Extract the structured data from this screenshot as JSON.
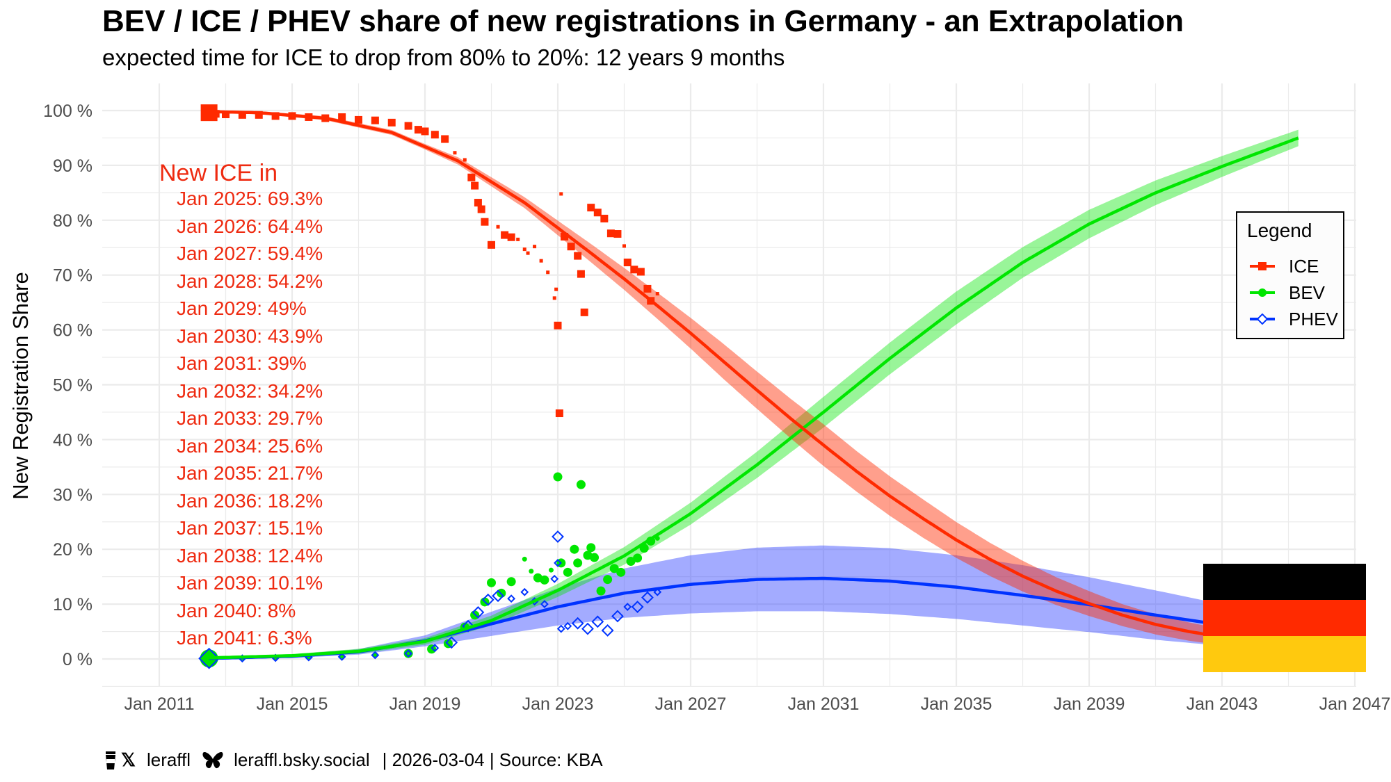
{
  "header": {
    "title": "BEV / ICE / PHEV share of new registrations in Germany - an Extrapolation",
    "subtitle": "expected time for ICE to drop from 80% to 20%: 12 years 9 months"
  },
  "annotation": {
    "heading": "New ICE in",
    "items": [
      "Jan 2025: 69.3%",
      "Jan 2026: 64.4%",
      "Jan 2027: 59.4%",
      "Jan 2028: 54.2%",
      "Jan 2029: 49%",
      "Jan 2030: 43.9%",
      "Jan 2031: 39%",
      "Jan 2032: 34.2%",
      "Jan 2033: 29.7%",
      "Jan 2034: 25.6%",
      "Jan 2035: 21.7%",
      "Jan 2036: 18.2%",
      "Jan 2037: 15.1%",
      "Jan 2038: 12.4%",
      "Jan 2039: 10.1%",
      "Jan 2040: 8%",
      "Jan 2041: 6.3%"
    ]
  },
  "legend": {
    "title": "Legend",
    "entries": [
      {
        "label": "ICE",
        "color": "#ff2a00",
        "marker": "square"
      },
      {
        "label": "BEV",
        "color": "#00e600",
        "marker": "circle"
      },
      {
        "label": "PHEV",
        "color": "#0033ff",
        "marker": "diamond-open"
      }
    ]
  },
  "flag": {
    "country": "Germany",
    "colors": [
      "#000000",
      "#ff2a00",
      "#ffc90e"
    ]
  },
  "footer": {
    "icons": [
      "coffee-cup-icon",
      "x-logo-icon",
      "butterfly-icon"
    ],
    "handle_x": "leraffl",
    "handle_bsky": "leraffl.bsky.social",
    "date_source": "| 2026-03-04 | Source: KBA"
  },
  "chart_data": {
    "type": "scatter",
    "title": "BEV / ICE / PHEV share of new registrations in Germany - an Extrapolation",
    "subtitle": "expected time for ICE to drop from 80% to 20%: 12 years 9 months",
    "xlabel": "",
    "ylabel": "New Registration Share",
    "x_ticks": [
      "Jan 2011",
      "Jan 2015",
      "Jan 2019",
      "Jan 2023",
      "Jan 2027",
      "Jan 2031",
      "Jan 2035",
      "Jan 2039",
      "Jan 2043",
      "Jan 2047"
    ],
    "x_tick_years": [
      2011,
      2015,
      2019,
      2023,
      2027,
      2031,
      2035,
      2039,
      2043,
      2047
    ],
    "y_ticks": [
      "0 %",
      "10 %",
      "20 %",
      "30 %",
      "40 %",
      "50 %",
      "60 %",
      "70 %",
      "80 %",
      "90 %",
      "100 %"
    ],
    "y_tick_values": [
      0,
      10,
      20,
      30,
      40,
      50,
      60,
      70,
      80,
      90,
      100
    ],
    "xlim": [
      2010.3,
      2047.1
    ],
    "ylim": [
      -5,
      105
    ],
    "grid": true,
    "legend_position": "right",
    "series": [
      {
        "name": "ICE",
        "color": "#ff2a00",
        "band_color": "#ff2a00",
        "points": [
          [
            2012.5,
            99.6,
            3
          ],
          [
            2012.7,
            99.4,
            2
          ],
          [
            2013.0,
            99.3,
            2
          ],
          [
            2013.5,
            99.2,
            2
          ],
          [
            2014.0,
            99.2,
            2
          ],
          [
            2014.5,
            99.0,
            2
          ],
          [
            2015.0,
            99.0,
            2
          ],
          [
            2015.5,
            98.8,
            2
          ],
          [
            2016.0,
            98.6,
            2
          ],
          [
            2016.5,
            98.8,
            2
          ],
          [
            2017.0,
            98.3,
            2
          ],
          [
            2017.5,
            98.2,
            2
          ],
          [
            2018.0,
            97.8,
            2
          ],
          [
            2018.5,
            97.2,
            2
          ],
          [
            2018.8,
            96.5,
            2
          ],
          [
            2019.0,
            96.2,
            2
          ],
          [
            2019.3,
            95.6,
            2
          ],
          [
            2019.6,
            94.8,
            2
          ],
          [
            2019.9,
            92.3,
            1
          ],
          [
            2020.2,
            91.0,
            1
          ],
          [
            2020.4,
            87.8,
            2
          ],
          [
            2020.5,
            86.3,
            2
          ],
          [
            2020.6,
            83.2,
            2
          ],
          [
            2020.7,
            82.0,
            2
          ],
          [
            2020.8,
            79.7,
            2
          ],
          [
            2021.0,
            75.5,
            2
          ],
          [
            2021.2,
            78.8,
            1
          ],
          [
            2021.4,
            77.3,
            2
          ],
          [
            2021.6,
            76.9,
            2
          ],
          [
            2021.8,
            76.5,
            1
          ],
          [
            2022.0,
            74.7,
            1
          ],
          [
            2022.1,
            74.0,
            1
          ],
          [
            2022.3,
            75.2,
            1
          ],
          [
            2022.5,
            72.6,
            1
          ],
          [
            2022.7,
            70.5,
            1
          ],
          [
            2022.9,
            65.8,
            1
          ],
          [
            2022.95,
            67.4,
            1
          ],
          [
            2023.0,
            60.8,
            2
          ],
          [
            2023.05,
            44.8,
            2
          ],
          [
            2023.1,
            84.8,
            1
          ],
          [
            2023.2,
            77.0,
            2
          ],
          [
            2023.4,
            75.2,
            2
          ],
          [
            2023.6,
            73.5,
            2
          ],
          [
            2023.7,
            70.2,
            2
          ],
          [
            2023.8,
            63.2,
            2
          ],
          [
            2024.0,
            82.3,
            2
          ],
          [
            2024.2,
            81.4,
            2
          ],
          [
            2024.4,
            80.3,
            2
          ],
          [
            2024.6,
            77.6,
            2
          ],
          [
            2024.8,
            77.5,
            2
          ],
          [
            2025.0,
            75.3,
            1
          ],
          [
            2025.1,
            72.3,
            2
          ],
          [
            2025.3,
            71.0,
            2
          ],
          [
            2025.5,
            70.6,
            2
          ],
          [
            2025.7,
            67.5,
            2
          ],
          [
            2025.8,
            65.3,
            2
          ],
          [
            2026.0,
            66.6,
            1
          ]
        ],
        "fit": [
          [
            2012.5,
            99.8
          ],
          [
            2014,
            99.6
          ],
          [
            2016,
            98.6
          ],
          [
            2018,
            96.0
          ],
          [
            2020,
            90.8
          ],
          [
            2022,
            83.2
          ],
          [
            2024,
            74.0
          ],
          [
            2025,
            69.3
          ],
          [
            2026,
            64.4
          ],
          [
            2027,
            59.4
          ],
          [
            2028,
            54.2
          ],
          [
            2029,
            49.0
          ],
          [
            2030,
            43.9
          ],
          [
            2031,
            39.0
          ],
          [
            2032,
            34.2
          ],
          [
            2033,
            29.7
          ],
          [
            2034,
            25.6
          ],
          [
            2035,
            21.7
          ],
          [
            2036,
            18.2
          ],
          [
            2037,
            15.1
          ],
          [
            2038,
            12.4
          ],
          [
            2039,
            10.1
          ],
          [
            2040,
            8.0
          ],
          [
            2041,
            6.3
          ],
          [
            2042,
            5.0
          ],
          [
            2043,
            4.0
          ]
        ],
        "band_halfwidth": [
          [
            2012.5,
            0.2
          ],
          [
            2019,
            0.5
          ],
          [
            2022,
            1.0
          ],
          [
            2025,
            2.0
          ],
          [
            2028,
            3.2
          ],
          [
            2031,
            3.8
          ],
          [
            2034,
            3.5
          ],
          [
            2037,
            2.8
          ],
          [
            2040,
            2.0
          ],
          [
            2043,
            1.5
          ]
        ]
      },
      {
        "name": "BEV",
        "color": "#00e600",
        "band_color": "#00e600",
        "points": [
          [
            2012.5,
            0.1,
            3
          ],
          [
            2013.5,
            0.2,
            1
          ],
          [
            2014.5,
            0.3,
            1
          ],
          [
            2015.5,
            0.4,
            1
          ],
          [
            2016.5,
            0.5,
            1
          ],
          [
            2017.5,
            0.8,
            1
          ],
          [
            2018.5,
            1.0,
            2
          ],
          [
            2019.2,
            1.8,
            2
          ],
          [
            2019.7,
            2.8,
            2
          ],
          [
            2020.2,
            5.8,
            2
          ],
          [
            2020.5,
            8.0,
            2
          ],
          [
            2020.8,
            10.4,
            2
          ],
          [
            2021.0,
            13.9,
            2
          ],
          [
            2021.3,
            12.0,
            2
          ],
          [
            2021.6,
            14.1,
            2
          ],
          [
            2022.0,
            18.2,
            1
          ],
          [
            2022.2,
            16.0,
            1
          ],
          [
            2022.4,
            14.8,
            2
          ],
          [
            2022.6,
            14.4,
            2
          ],
          [
            2022.8,
            16.2,
            1
          ],
          [
            2023.0,
            33.2,
            2
          ],
          [
            2023.1,
            17.5,
            2
          ],
          [
            2023.3,
            15.8,
            2
          ],
          [
            2023.5,
            20.0,
            2
          ],
          [
            2023.6,
            17.5,
            2
          ],
          [
            2023.7,
            31.8,
            2
          ],
          [
            2023.9,
            18.9,
            2
          ],
          [
            2024.0,
            20.3,
            2
          ],
          [
            2024.1,
            18.5,
            2
          ],
          [
            2024.3,
            12.4,
            2
          ],
          [
            2024.5,
            14.5,
            2
          ],
          [
            2024.7,
            16.5,
            2
          ],
          [
            2024.9,
            15.8,
            2
          ],
          [
            2025.2,
            17.8,
            2
          ],
          [
            2025.4,
            18.4,
            2
          ],
          [
            2025.6,
            20.2,
            2
          ],
          [
            2025.8,
            21.5,
            2
          ],
          [
            2026.0,
            22.0,
            1
          ]
        ],
        "fit": [
          [
            2012.5,
            0.2
          ],
          [
            2015,
            0.6
          ],
          [
            2017,
            1.4
          ],
          [
            2019,
            3.2
          ],
          [
            2021,
            7.0
          ],
          [
            2023,
            12.5
          ],
          [
            2025,
            18.8
          ],
          [
            2027,
            26.5
          ],
          [
            2029,
            35.4
          ],
          [
            2031,
            45.0
          ],
          [
            2033,
            54.8
          ],
          [
            2035,
            64.0
          ],
          [
            2037,
            72.3
          ],
          [
            2039,
            79.3
          ],
          [
            2041,
            85.0
          ],
          [
            2043,
            89.8
          ],
          [
            2045.3,
            95.0
          ]
        ],
        "band_halfwidth": [
          [
            2012.5,
            0.1
          ],
          [
            2019,
            0.6
          ],
          [
            2023,
            1.2
          ],
          [
            2027,
            2.0
          ],
          [
            2031,
            2.8
          ],
          [
            2035,
            3.0
          ],
          [
            2039,
            2.6
          ],
          [
            2045.3,
            1.5
          ]
        ]
      },
      {
        "name": "PHEV",
        "color": "#0033ff",
        "band_color": "#3344ff",
        "points": [
          [
            2012.5,
            0.1,
            3
          ],
          [
            2013.5,
            0.1,
            1
          ],
          [
            2014.5,
            0.2,
            1
          ],
          [
            2015.5,
            0.3,
            1
          ],
          [
            2016.5,
            0.4,
            1
          ],
          [
            2017.5,
            0.7,
            1
          ],
          [
            2018.5,
            1.0,
            1
          ],
          [
            2019.3,
            2.0,
            1
          ],
          [
            2019.8,
            3.0,
            2
          ],
          [
            2020.3,
            6.0,
            2
          ],
          [
            2020.6,
            8.5,
            2
          ],
          [
            2020.9,
            10.8,
            2
          ],
          [
            2021.2,
            11.5,
            2
          ],
          [
            2021.6,
            11.0,
            1
          ],
          [
            2022.0,
            12.2,
            1
          ],
          [
            2022.3,
            10.5,
            1
          ],
          [
            2022.6,
            10.0,
            1
          ],
          [
            2022.9,
            14.6,
            1
          ],
          [
            2023.0,
            22.3,
            2
          ],
          [
            2023.0,
            17.5,
            1
          ],
          [
            2023.1,
            5.5,
            1
          ],
          [
            2023.3,
            6.0,
            1
          ],
          [
            2023.6,
            6.5,
            2
          ],
          [
            2023.9,
            5.5,
            2
          ],
          [
            2024.2,
            6.8,
            2
          ],
          [
            2024.5,
            5.2,
            2
          ],
          [
            2024.8,
            7.8,
            2
          ],
          [
            2025.1,
            9.5,
            1
          ],
          [
            2025.4,
            9.5,
            2
          ],
          [
            2025.7,
            11.2,
            2
          ],
          [
            2026.0,
            12.2,
            1
          ]
        ],
        "fit": [
          [
            2012.5,
            0.1
          ],
          [
            2015,
            0.5
          ],
          [
            2017,
            1.3
          ],
          [
            2019,
            3.3
          ],
          [
            2021,
            6.4
          ],
          [
            2023,
            9.5
          ],
          [
            2025,
            12.0
          ],
          [
            2027,
            13.6
          ],
          [
            2029,
            14.5
          ],
          [
            2031,
            14.7
          ],
          [
            2033,
            14.2
          ],
          [
            2035,
            13.1
          ],
          [
            2037,
            11.6
          ],
          [
            2039,
            9.9
          ],
          [
            2041,
            8.0
          ],
          [
            2043,
            6.2
          ]
        ],
        "band_halfwidth": [
          [
            2012.5,
            0.1
          ],
          [
            2017,
            0.5
          ],
          [
            2019,
            1.0
          ],
          [
            2021,
            2.2
          ],
          [
            2023,
            3.4
          ],
          [
            2025,
            4.5
          ],
          [
            2027,
            5.3
          ],
          [
            2029,
            5.8
          ],
          [
            2031,
            6.0
          ],
          [
            2033,
            6.0
          ],
          [
            2035,
            5.8
          ],
          [
            2037,
            5.5
          ],
          [
            2039,
            5.0
          ],
          [
            2041,
            4.5
          ],
          [
            2043,
            3.8
          ]
        ]
      }
    ]
  }
}
